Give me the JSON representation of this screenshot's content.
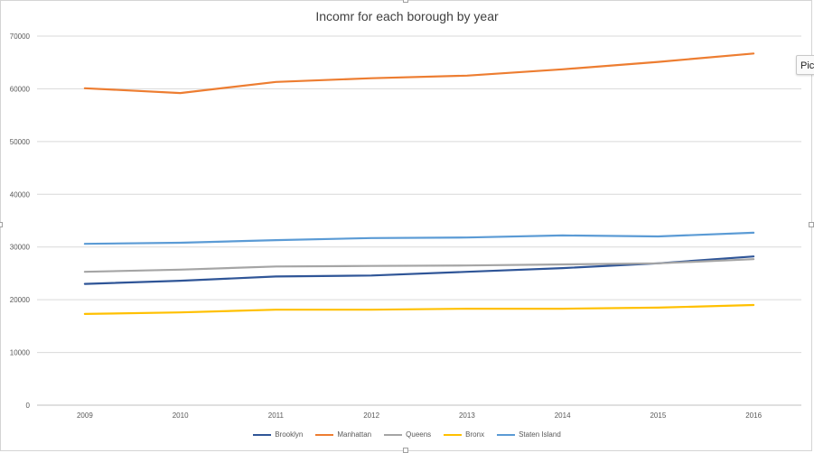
{
  "chart_data": {
    "type": "line",
    "title": "Incomr for each borough by year",
    "xlabel": "",
    "ylabel": "",
    "categories": [
      "2009",
      "2010",
      "2011",
      "2012",
      "2013",
      "2014",
      "2015",
      "2016"
    ],
    "ylim": [
      0,
      70000
    ],
    "yticks": [
      0,
      10000,
      20000,
      30000,
      40000,
      50000,
      60000,
      70000
    ],
    "grid": true,
    "legend_position": "bottom",
    "series": [
      {
        "name": "Brooklyn",
        "color": "#2f5597",
        "values": [
          23000,
          23600,
          24400,
          24600,
          25300,
          26000,
          26900,
          28200
        ]
      },
      {
        "name": "Manhattan",
        "color": "#ed7d31",
        "values": [
          60100,
          59200,
          61300,
          62000,
          62500,
          63700,
          65100,
          66700
        ]
      },
      {
        "name": "Queens",
        "color": "#a5a5a5",
        "values": [
          25300,
          25700,
          26300,
          26400,
          26500,
          26700,
          26900,
          27700
        ]
      },
      {
        "name": "Bronx",
        "color": "#ffc000",
        "values": [
          17300,
          17600,
          18100,
          18100,
          18300,
          18300,
          18500,
          19000
        ]
      },
      {
        "name": "Staten Island",
        "color": "#5b9bd5",
        "values": [
          30600,
          30800,
          31300,
          31700,
          31800,
          32200,
          32000,
          32700
        ]
      }
    ]
  },
  "popup": {
    "label": "Pic"
  }
}
